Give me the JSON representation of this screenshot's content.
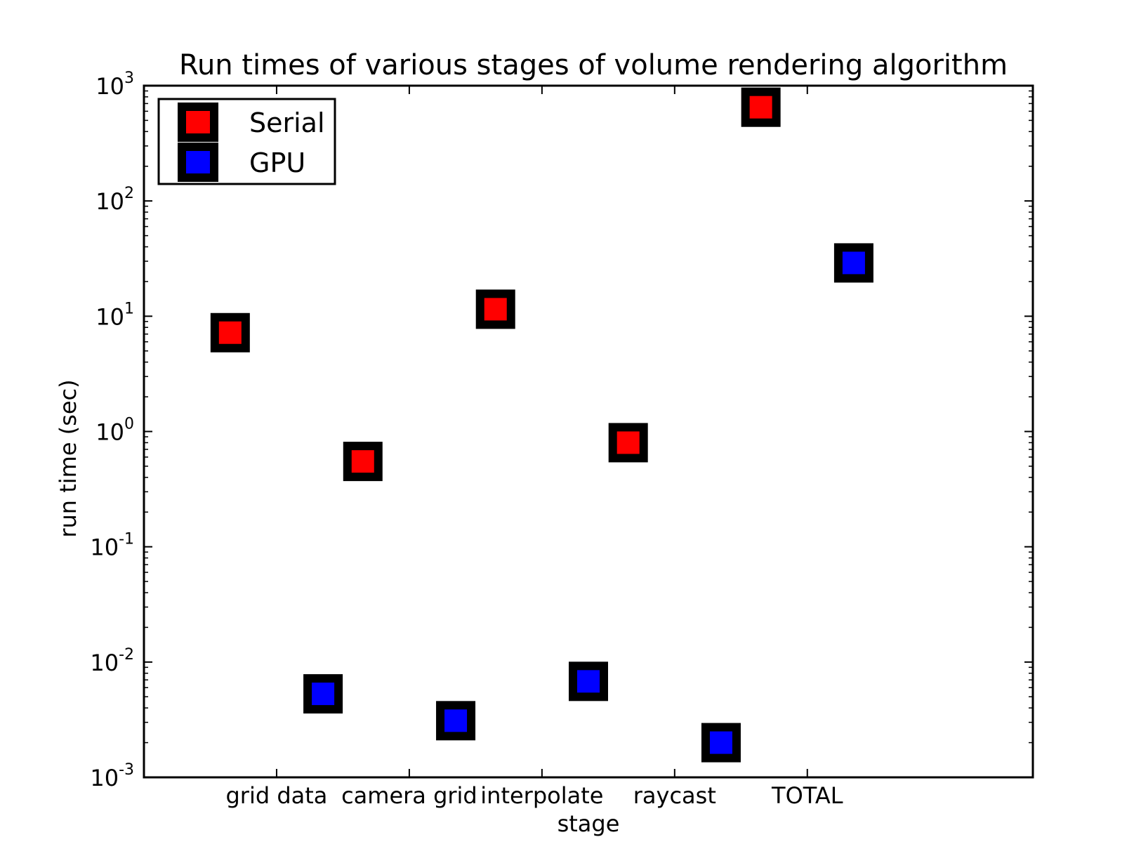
{
  "chart_data": {
    "type": "scatter",
    "title": "Run times of various stages of volume rendering algorithm",
    "xlabel": "stage",
    "ylabel": "run time (sec)",
    "yscale": "log",
    "ylim": [
      0.001,
      1000
    ],
    "categories": [
      "grid data",
      "camera grid",
      "interpolate",
      "raycast",
      "TOTAL"
    ],
    "y_ticks": [
      {
        "value": 0.001,
        "base": "10",
        "exp": "-3"
      },
      {
        "value": 0.01,
        "base": "10",
        "exp": "-2"
      },
      {
        "value": 0.1,
        "base": "10",
        "exp": "-1"
      },
      {
        "value": 1,
        "base": "10",
        "exp": "0"
      },
      {
        "value": 10,
        "base": "10",
        "exp": "1"
      },
      {
        "value": 100,
        "base": "10",
        "exp": "2"
      },
      {
        "value": 1000,
        "base": "10",
        "exp": "3"
      }
    ],
    "series": [
      {
        "name": "Serial",
        "color": "#ff0000",
        "values": [
          7.2,
          0.55,
          11.5,
          0.8,
          650
        ]
      },
      {
        "name": "GPU",
        "color": "#0000ff",
        "values": [
          0.0053,
          0.0031,
          0.0068,
          0.002,
          29
        ]
      }
    ],
    "marker": "square",
    "marker_edge_color": "#000000",
    "legend_position": "top-left",
    "grid": false
  }
}
